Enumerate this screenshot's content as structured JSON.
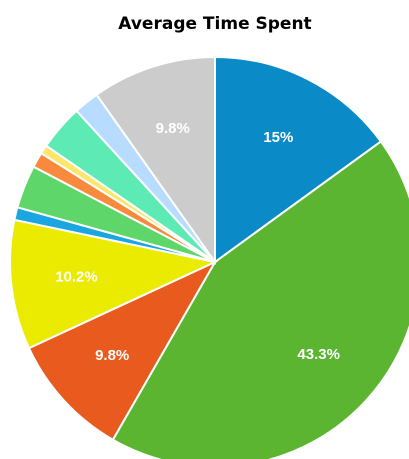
{
  "chart_data": {
    "type": "pie",
    "title": "Average Time Spent",
    "values": [
      15,
      43.3,
      9.8,
      10.2,
      1,
      3.4,
      1.2,
      0.7,
      3.6,
      2,
      9.8
    ],
    "value_labels": [
      "15%",
      "43.3%",
      "9.8%",
      "10.2%",
      null,
      null,
      null,
      null,
      null,
      null,
      "9.8%"
    ],
    "colors": [
      "#0a8ac6",
      "#5cb531",
      "#e95a1e",
      "#eaeb00",
      "#1aa6e0",
      "#5fd66a",
      "#f78a3c",
      "#fde66a",
      "#5eeab4",
      "#b8dcff",
      "#cccccc"
    ]
  }
}
